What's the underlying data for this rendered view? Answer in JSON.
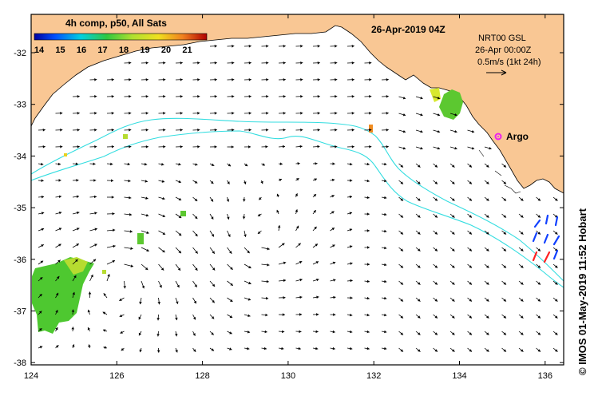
{
  "map": {
    "title": "26-Apr-2019 04Z",
    "colorbar": {
      "label": "4h comp, p50, All Sats",
      "ticks": [
        "14",
        "15",
        "16",
        "17",
        "18",
        "19",
        "20",
        "21"
      ]
    },
    "info": {
      "product": "NRT00 GSL",
      "time": "26-Apr 00:00Z",
      "scale": "0.5m/s (1kt 24h)"
    },
    "argo_label": "Argo",
    "credit": "© IMOS 01-May-2019 11:52 Hobart",
    "lon_ticks": [
      "124",
      "126",
      "128",
      "130",
      "132",
      "134",
      "136"
    ],
    "lat_ticks": [
      "-32",
      "-33",
      "-34",
      "-35",
      "-36",
      "-37",
      "-38"
    ],
    "colors": {
      "land": "#f9c794",
      "contour": "#33dde0",
      "argo": "#ee22ee",
      "drifter_blue": "#1040ff",
      "drifter_red": "#ff2020",
      "sst_green": "#4ec830",
      "sst_yellow": "#d8e830"
    }
  }
}
